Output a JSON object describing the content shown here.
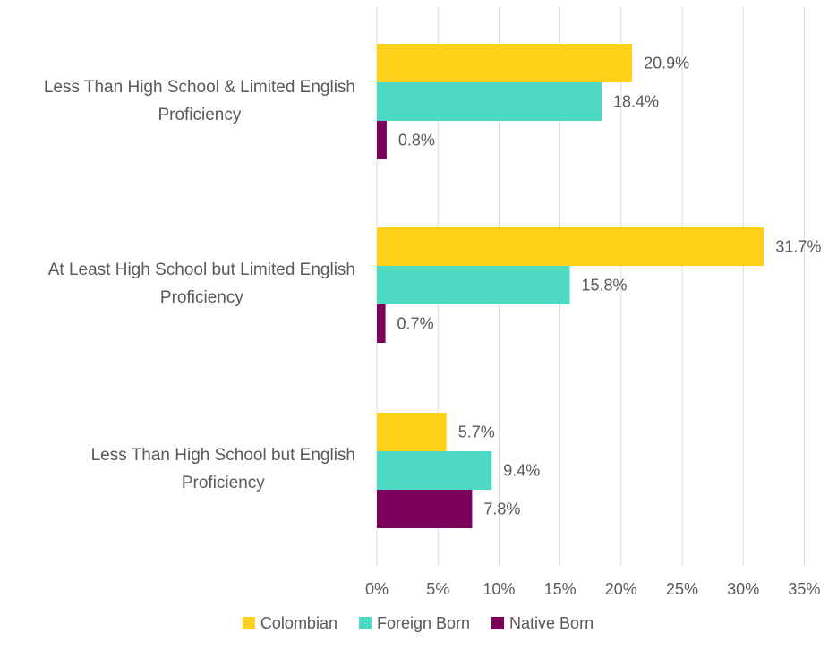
{
  "chart_data": {
    "type": "bar",
    "orientation": "horizontal",
    "categories": [
      [
        "Less Than High School & Limited English",
        "Proficiency"
      ],
      [
        "At Least High School but Limited English",
        "Proficiency"
      ],
      [
        "Less Than High School but English",
        "Proficiency"
      ]
    ],
    "series": [
      {
        "name": "Colombian",
        "color": "#FFD11A",
        "values": [
          20.9,
          31.7,
          5.7
        ],
        "labels": [
          "20.9%",
          "31.7%",
          "5.7%"
        ]
      },
      {
        "name": "Foreign Born",
        "color": "#4DD9C2",
        "values": [
          18.4,
          15.8,
          9.4
        ],
        "labels": [
          "18.4%",
          "15.8%",
          "9.4%"
        ]
      },
      {
        "name": "Native Born",
        "color": "#7B005C",
        "values": [
          0.8,
          0.7,
          7.8
        ],
        "labels": [
          "0.8%",
          "0.7%",
          "7.8%"
        ]
      }
    ],
    "xlim": [
      0,
      35
    ],
    "xticks": [
      0,
      5,
      10,
      15,
      20,
      25,
      30,
      35
    ],
    "xtick_labels": [
      "0%",
      "5%",
      "10%",
      "15%",
      "20%",
      "25%",
      "30%",
      "35%"
    ],
    "grid": "vertical",
    "legend_position": "bottom",
    "gridline_color": "#D9D9D9"
  }
}
